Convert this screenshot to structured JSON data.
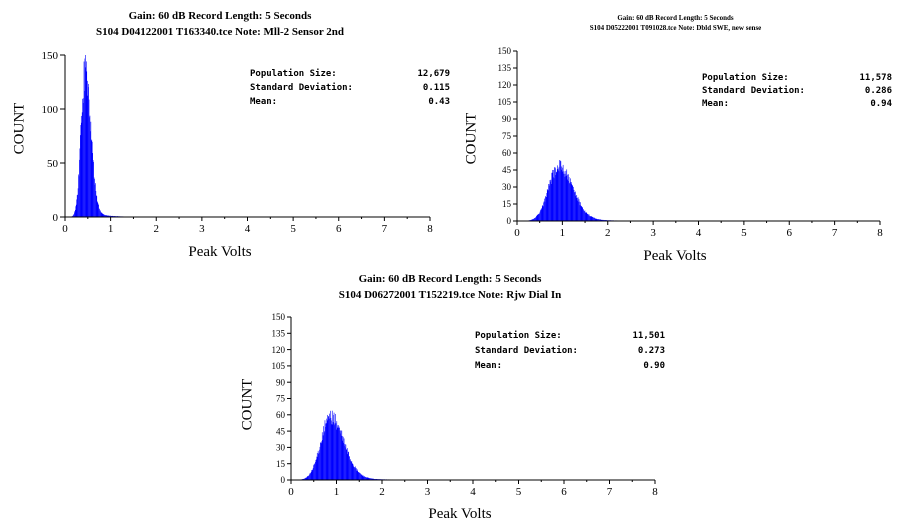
{
  "chart_data": [
    {
      "type": "histogram",
      "title_line1": "Gain:  60 dB Record Length: 5 Seconds",
      "title_line2": "S104 D04122001 T163340.tce Note: Mll-2 Sensor 2nd",
      "xlabel": "Peak Volts",
      "ylabel": "COUNT",
      "xlim": [
        0,
        8
      ],
      "ylim": [
        0,
        150
      ],
      "xticks": [
        "0",
        "1",
        "2",
        "3",
        "4",
        "5",
        "6",
        "7",
        "8"
      ],
      "yticks": [
        "0",
        "50",
        "100",
        "150"
      ],
      "bar_color": "#0000ff",
      "stats": [
        {
          "label": "Population Size:",
          "value": "12,679"
        },
        {
          "label": "Standard Deviation:",
          "value": "0.115"
        },
        {
          "label": "Mean:",
          "value": "0.43"
        }
      ],
      "distribution": {
        "peak_x": 0.43,
        "peak_count": 135,
        "spread": 0.115
      }
    },
    {
      "type": "histogram",
      "title_line1": "Gain:  60 dB Record Length: 5 Seconds",
      "title_line2": "S104 D05222001 T091028.tce Note: Dbld SWE, new sense",
      "xlabel": "Peak Volts",
      "ylabel": "COUNT",
      "xlim": [
        0,
        8
      ],
      "ylim": [
        0,
        150
      ],
      "xticks": [
        "0",
        "1",
        "2",
        "3",
        "4",
        "5",
        "6",
        "7",
        "8"
      ],
      "yticks": [
        "0",
        "15",
        "30",
        "45",
        "60",
        "75",
        "90",
        "105",
        "120",
        "135",
        "150"
      ],
      "bar_color": "#0000ff",
      "stats": [
        {
          "label": "Population Size:",
          "value": "11,578"
        },
        {
          "label": "Standard Deviation:",
          "value": "0.286"
        },
        {
          "label": "Mean:",
          "value": "0.94"
        }
      ],
      "distribution": {
        "peak_x": 0.9,
        "peak_count": 48,
        "spread": 0.286
      }
    },
    {
      "type": "histogram",
      "title_line1": "Gain:  60 dB Record Length: 5 Seconds",
      "title_line2": "S104 D06272001 T152219.tce Note: Rjw Dial In",
      "xlabel": "Peak Volts",
      "ylabel": "COUNT",
      "xlim": [
        0,
        8
      ],
      "ylim": [
        0,
        150
      ],
      "xticks": [
        "0",
        "1",
        "2",
        "3",
        "4",
        "5",
        "6",
        "7",
        "8"
      ],
      "yticks": [
        "0",
        "15",
        "30",
        "45",
        "60",
        "75",
        "90",
        "105",
        "120",
        "135",
        "150"
      ],
      "bar_color": "#0000ff",
      "stats": [
        {
          "label": "Population Size:",
          "value": "11,501"
        },
        {
          "label": "Standard Deviation:",
          "value": "0.273"
        },
        {
          "label": "Mean:",
          "value": "0.90"
        }
      ],
      "distribution": {
        "peak_x": 0.85,
        "peak_count": 58,
        "spread": 0.273
      }
    }
  ]
}
